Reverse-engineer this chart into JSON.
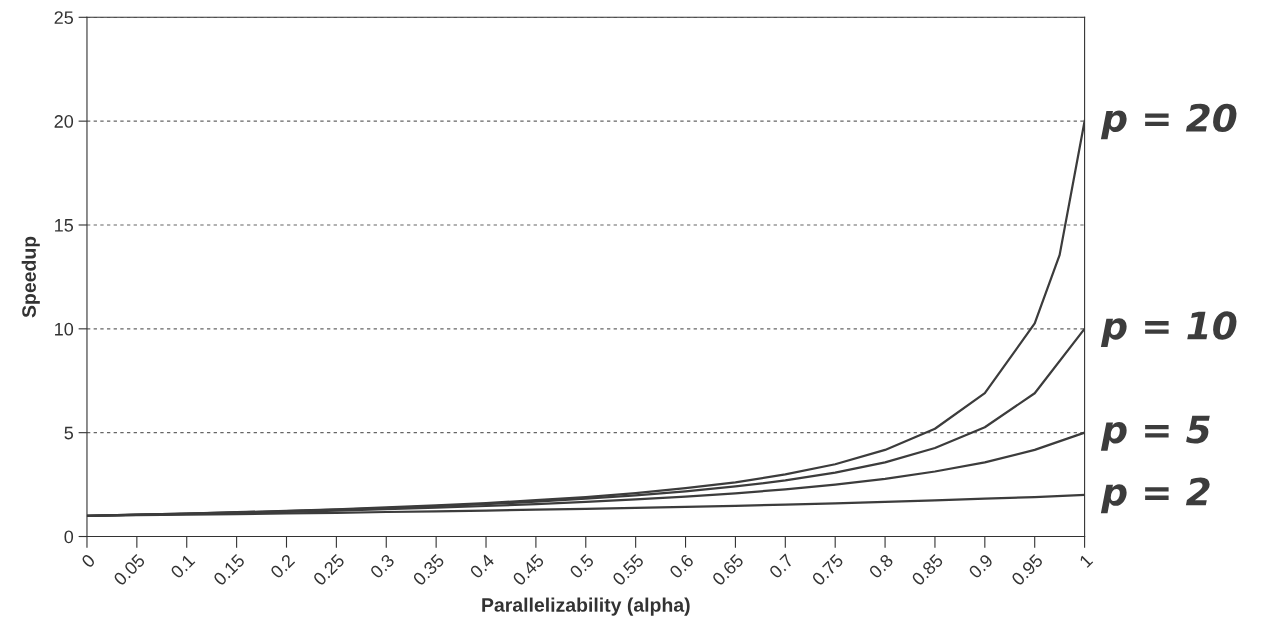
{
  "chart_data": {
    "type": "line",
    "xlabel": "Parallelizability (alpha)",
    "ylabel": "Speedup",
    "x": [
      0,
      0.05,
      0.1,
      0.15,
      0.2,
      0.25,
      0.3,
      0.35,
      0.4,
      0.45,
      0.5,
      0.55,
      0.6,
      0.65,
      0.7,
      0.75,
      0.8,
      0.85,
      0.9,
      0.95,
      1
    ],
    "series": [
      {
        "name": "p = 20",
        "color": "#3c3c3c",
        "x": [
          0,
          0.05,
          0.1,
          0.15,
          0.2,
          0.25,
          0.3,
          0.35,
          0.4,
          0.45,
          0.5,
          0.55,
          0.6,
          0.65,
          0.7,
          0.75,
          0.8,
          0.85,
          0.9,
          0.95,
          0.975,
          1
        ],
        "values": [
          1,
          1.05,
          1.1,
          1.17,
          1.23,
          1.31,
          1.4,
          1.5,
          1.61,
          1.75,
          1.9,
          2.09,
          2.33,
          2.61,
          2.99,
          3.48,
          4.17,
          5.19,
          6.9,
          10.26,
          13.56,
          20
        ]
      },
      {
        "name": "p = 10",
        "color": "#3c3c3c",
        "values": [
          1,
          1.05,
          1.1,
          1.16,
          1.22,
          1.29,
          1.37,
          1.46,
          1.56,
          1.68,
          1.82,
          1.98,
          2.17,
          2.41,
          2.7,
          3.08,
          3.57,
          4.26,
          5.26,
          6.9,
          10
        ]
      },
      {
        "name": "p = 5",
        "color": "#3c3c3c",
        "values": [
          1,
          1.04,
          1.09,
          1.14,
          1.19,
          1.25,
          1.32,
          1.39,
          1.47,
          1.56,
          1.67,
          1.79,
          1.92,
          2.08,
          2.27,
          2.5,
          2.78,
          3.13,
          3.57,
          4.17,
          5
        ]
      },
      {
        "name": "p = 2",
        "color": "#3c3c3c",
        "values": [
          1,
          1.03,
          1.05,
          1.08,
          1.11,
          1.14,
          1.18,
          1.21,
          1.25,
          1.29,
          1.33,
          1.38,
          1.43,
          1.48,
          1.54,
          1.6,
          1.67,
          1.74,
          1.82,
          1.9,
          2
        ]
      }
    ],
    "xlim": [
      0,
      1
    ],
    "xticks": [
      0,
      0.05,
      0.1,
      0.15,
      0.2,
      0.25,
      0.3,
      0.35,
      0.4,
      0.45,
      0.5,
      0.55,
      0.6,
      0.65,
      0.7,
      0.75,
      0.8,
      0.85,
      0.9,
      0.95,
      1
    ],
    "ylim": [
      0,
      25
    ],
    "yticks": [
      0,
      5,
      10,
      15,
      20,
      25
    ],
    "grid": "y",
    "legend": false,
    "marker": "none",
    "line_style": "solid"
  }
}
